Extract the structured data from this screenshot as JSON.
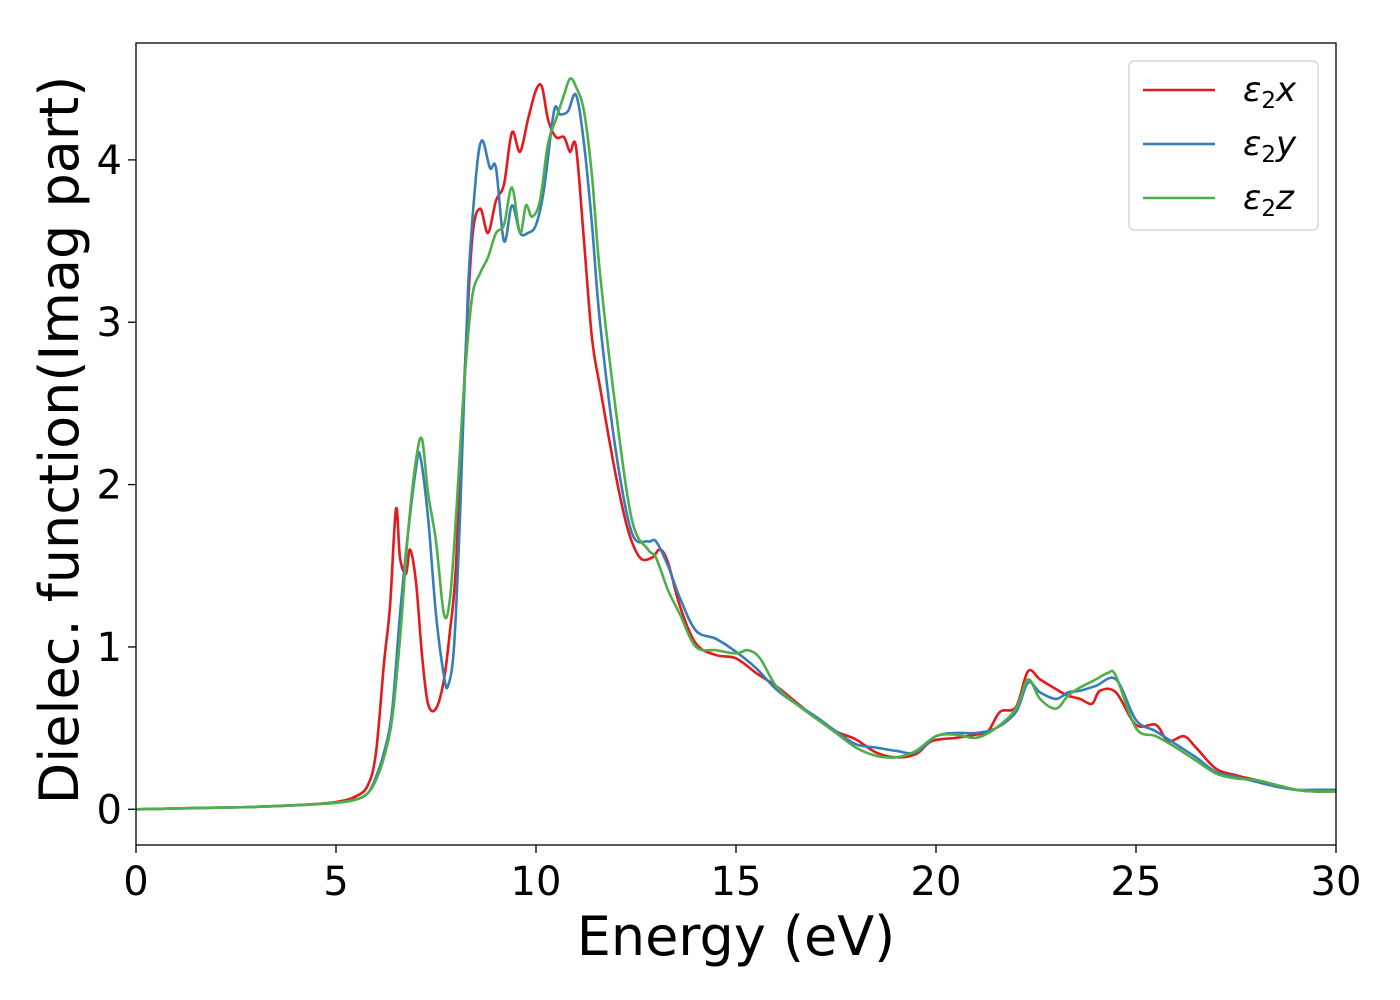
{
  "chart_data": {
    "type": "line",
    "xlabel": "Energy (eV)",
    "ylabel": "Dielec. function(Imag part)",
    "xlim": [
      0,
      30
    ],
    "ylim": [
      -0.22,
      4.72
    ],
    "xticks": [
      0,
      5,
      10,
      15,
      20,
      25,
      30
    ],
    "yticks": [
      0,
      1,
      2,
      3,
      4
    ],
    "legend_position": "top-right",
    "grid": false,
    "series": [
      {
        "name": "ε2x",
        "legend": {
          "symbol": "ε",
          "sub": "2",
          "var": "x"
        },
        "color": "#e41a1c",
        "x": [
          0,
          1,
          2,
          3,
          4,
          5,
          5.5,
          5.8,
          6.0,
          6.2,
          6.35,
          6.5,
          6.6,
          6.75,
          6.85,
          7.0,
          7.15,
          7.3,
          7.5,
          7.7,
          7.85,
          8.0,
          8.2,
          8.4,
          8.6,
          8.8,
          9.0,
          9.2,
          9.4,
          9.6,
          9.8,
          10.0,
          10.15,
          10.3,
          10.5,
          10.7,
          10.85,
          11.0,
          11.2,
          11.4,
          11.6,
          12.0,
          12.3,
          12.6,
          12.9,
          13.1,
          13.3,
          13.6,
          14.0,
          14.5,
          15.0,
          15.5,
          16.0,
          16.5,
          17.0,
          17.5,
          18.0,
          18.5,
          19.0,
          19.5,
          19.9,
          20.5,
          21.0,
          21.3,
          21.6,
          22.0,
          22.3,
          22.6,
          23.0,
          23.3,
          23.6,
          23.9,
          24.1,
          24.5,
          25.0,
          25.5,
          25.8,
          26.2,
          26.5,
          27.0,
          27.5,
          28.0,
          28.5,
          29.0,
          29.5,
          30.0
        ],
        "values": [
          0.0,
          0.005,
          0.01,
          0.015,
          0.025,
          0.045,
          0.08,
          0.15,
          0.35,
          0.9,
          1.25,
          1.85,
          1.55,
          1.45,
          1.6,
          1.4,
          0.95,
          0.65,
          0.62,
          0.8,
          1.1,
          1.5,
          2.6,
          3.5,
          3.7,
          3.55,
          3.75,
          3.85,
          4.17,
          4.05,
          4.25,
          4.43,
          4.45,
          4.25,
          4.14,
          4.14,
          4.05,
          4.08,
          3.5,
          2.9,
          2.6,
          2.05,
          1.72,
          1.55,
          1.55,
          1.6,
          1.52,
          1.25,
          1.02,
          0.95,
          0.93,
          0.84,
          0.76,
          0.66,
          0.56,
          0.48,
          0.43,
          0.35,
          0.32,
          0.34,
          0.42,
          0.44,
          0.46,
          0.48,
          0.6,
          0.63,
          0.85,
          0.8,
          0.74,
          0.7,
          0.68,
          0.65,
          0.73,
          0.72,
          0.52,
          0.52,
          0.42,
          0.45,
          0.38,
          0.25,
          0.21,
          0.18,
          0.15,
          0.12,
          0.11,
          0.11
        ]
      },
      {
        "name": "ε2y",
        "legend": {
          "symbol": "ε",
          "sub": "2",
          "var": "y"
        },
        "color": "#377eb8",
        "x": [
          0,
          1,
          2,
          3,
          4,
          5,
          5.5,
          5.8,
          6.0,
          6.2,
          6.4,
          6.6,
          6.8,
          7.0,
          7.1,
          7.3,
          7.5,
          7.7,
          7.8,
          7.95,
          8.1,
          8.3,
          8.5,
          8.65,
          8.85,
          9.0,
          9.2,
          9.4,
          9.6,
          9.8,
          10.0,
          10.2,
          10.45,
          10.6,
          10.8,
          11.0,
          11.2,
          11.4,
          11.6,
          12.0,
          12.4,
          12.8,
          13.0,
          13.3,
          13.6,
          14.0,
          14.5,
          15.0,
          15.5,
          16.0,
          16.5,
          17.0,
          17.5,
          18.0,
          18.5,
          19.0,
          19.5,
          20.0,
          20.5,
          21.0,
          21.5,
          22.0,
          22.3,
          22.6,
          23.0,
          23.3,
          23.6,
          24.0,
          24.5,
          25.0,
          25.5,
          26.0,
          26.5,
          27.0,
          27.5,
          28.0,
          28.5,
          29.0,
          29.5,
          30.0
        ],
        "values": [
          0.0,
          0.005,
          0.01,
          0.015,
          0.025,
          0.04,
          0.06,
          0.1,
          0.2,
          0.35,
          0.6,
          1.2,
          1.7,
          2.1,
          2.18,
          1.8,
          1.2,
          0.82,
          0.76,
          1.0,
          1.8,
          3.2,
          3.9,
          4.12,
          3.95,
          3.95,
          3.5,
          3.72,
          3.55,
          3.55,
          3.6,
          3.82,
          4.3,
          4.28,
          4.3,
          4.4,
          4.1,
          3.6,
          3.0,
          2.2,
          1.7,
          1.65,
          1.65,
          1.5,
          1.3,
          1.1,
          1.05,
          0.97,
          0.87,
          0.74,
          0.65,
          0.57,
          0.48,
          0.4,
          0.38,
          0.36,
          0.35,
          0.45,
          0.47,
          0.47,
          0.5,
          0.6,
          0.78,
          0.72,
          0.68,
          0.72,
          0.73,
          0.76,
          0.8,
          0.55,
          0.48,
          0.4,
          0.32,
          0.23,
          0.2,
          0.17,
          0.14,
          0.12,
          0.12,
          0.12
        ]
      },
      {
        "name": "ε2z",
        "legend": {
          "symbol": "ε",
          "sub": "2",
          "var": "z"
        },
        "color": "#4daf4a",
        "x": [
          0,
          1,
          2,
          3,
          4,
          5,
          5.5,
          5.8,
          6.0,
          6.2,
          6.4,
          6.6,
          6.8,
          7.0,
          7.15,
          7.3,
          7.5,
          7.7,
          7.85,
          8.0,
          8.2,
          8.4,
          8.6,
          8.8,
          9.0,
          9.2,
          9.4,
          9.6,
          9.75,
          9.9,
          10.1,
          10.3,
          10.5,
          10.7,
          10.85,
          11.0,
          11.2,
          11.4,
          11.6,
          12.0,
          12.4,
          12.8,
          13.0,
          13.3,
          13.6,
          14.0,
          14.5,
          15.0,
          15.3,
          15.6,
          16.0,
          16.5,
          17.0,
          17.5,
          18.0,
          18.5,
          19.0,
          19.5,
          20.0,
          20.5,
          21.0,
          21.5,
          22.0,
          22.3,
          22.6,
          23.0,
          23.3,
          23.6,
          24.0,
          24.3,
          24.5,
          25.0,
          25.5,
          26.0,
          26.5,
          27.0,
          27.5,
          28.0,
          28.5,
          29.0,
          29.5,
          30.0
        ],
        "values": [
          0.0,
          0.005,
          0.01,
          0.015,
          0.025,
          0.04,
          0.06,
          0.1,
          0.18,
          0.32,
          0.55,
          1.05,
          1.7,
          2.15,
          2.28,
          1.95,
          1.65,
          1.2,
          1.3,
          1.8,
          2.6,
          3.15,
          3.3,
          3.4,
          3.55,
          3.6,
          3.83,
          3.55,
          3.72,
          3.65,
          3.75,
          4.1,
          4.25,
          4.4,
          4.5,
          4.45,
          4.3,
          3.9,
          3.3,
          2.45,
          1.78,
          1.6,
          1.55,
          1.35,
          1.2,
          1.0,
          0.98,
          0.96,
          0.98,
          0.93,
          0.76,
          0.65,
          0.56,
          0.47,
          0.38,
          0.33,
          0.32,
          0.36,
          0.45,
          0.46,
          0.44,
          0.5,
          0.62,
          0.8,
          0.68,
          0.62,
          0.7,
          0.75,
          0.8,
          0.84,
          0.82,
          0.5,
          0.45,
          0.38,
          0.3,
          0.22,
          0.19,
          0.18,
          0.15,
          0.12,
          0.11,
          0.11
        ]
      }
    ]
  }
}
